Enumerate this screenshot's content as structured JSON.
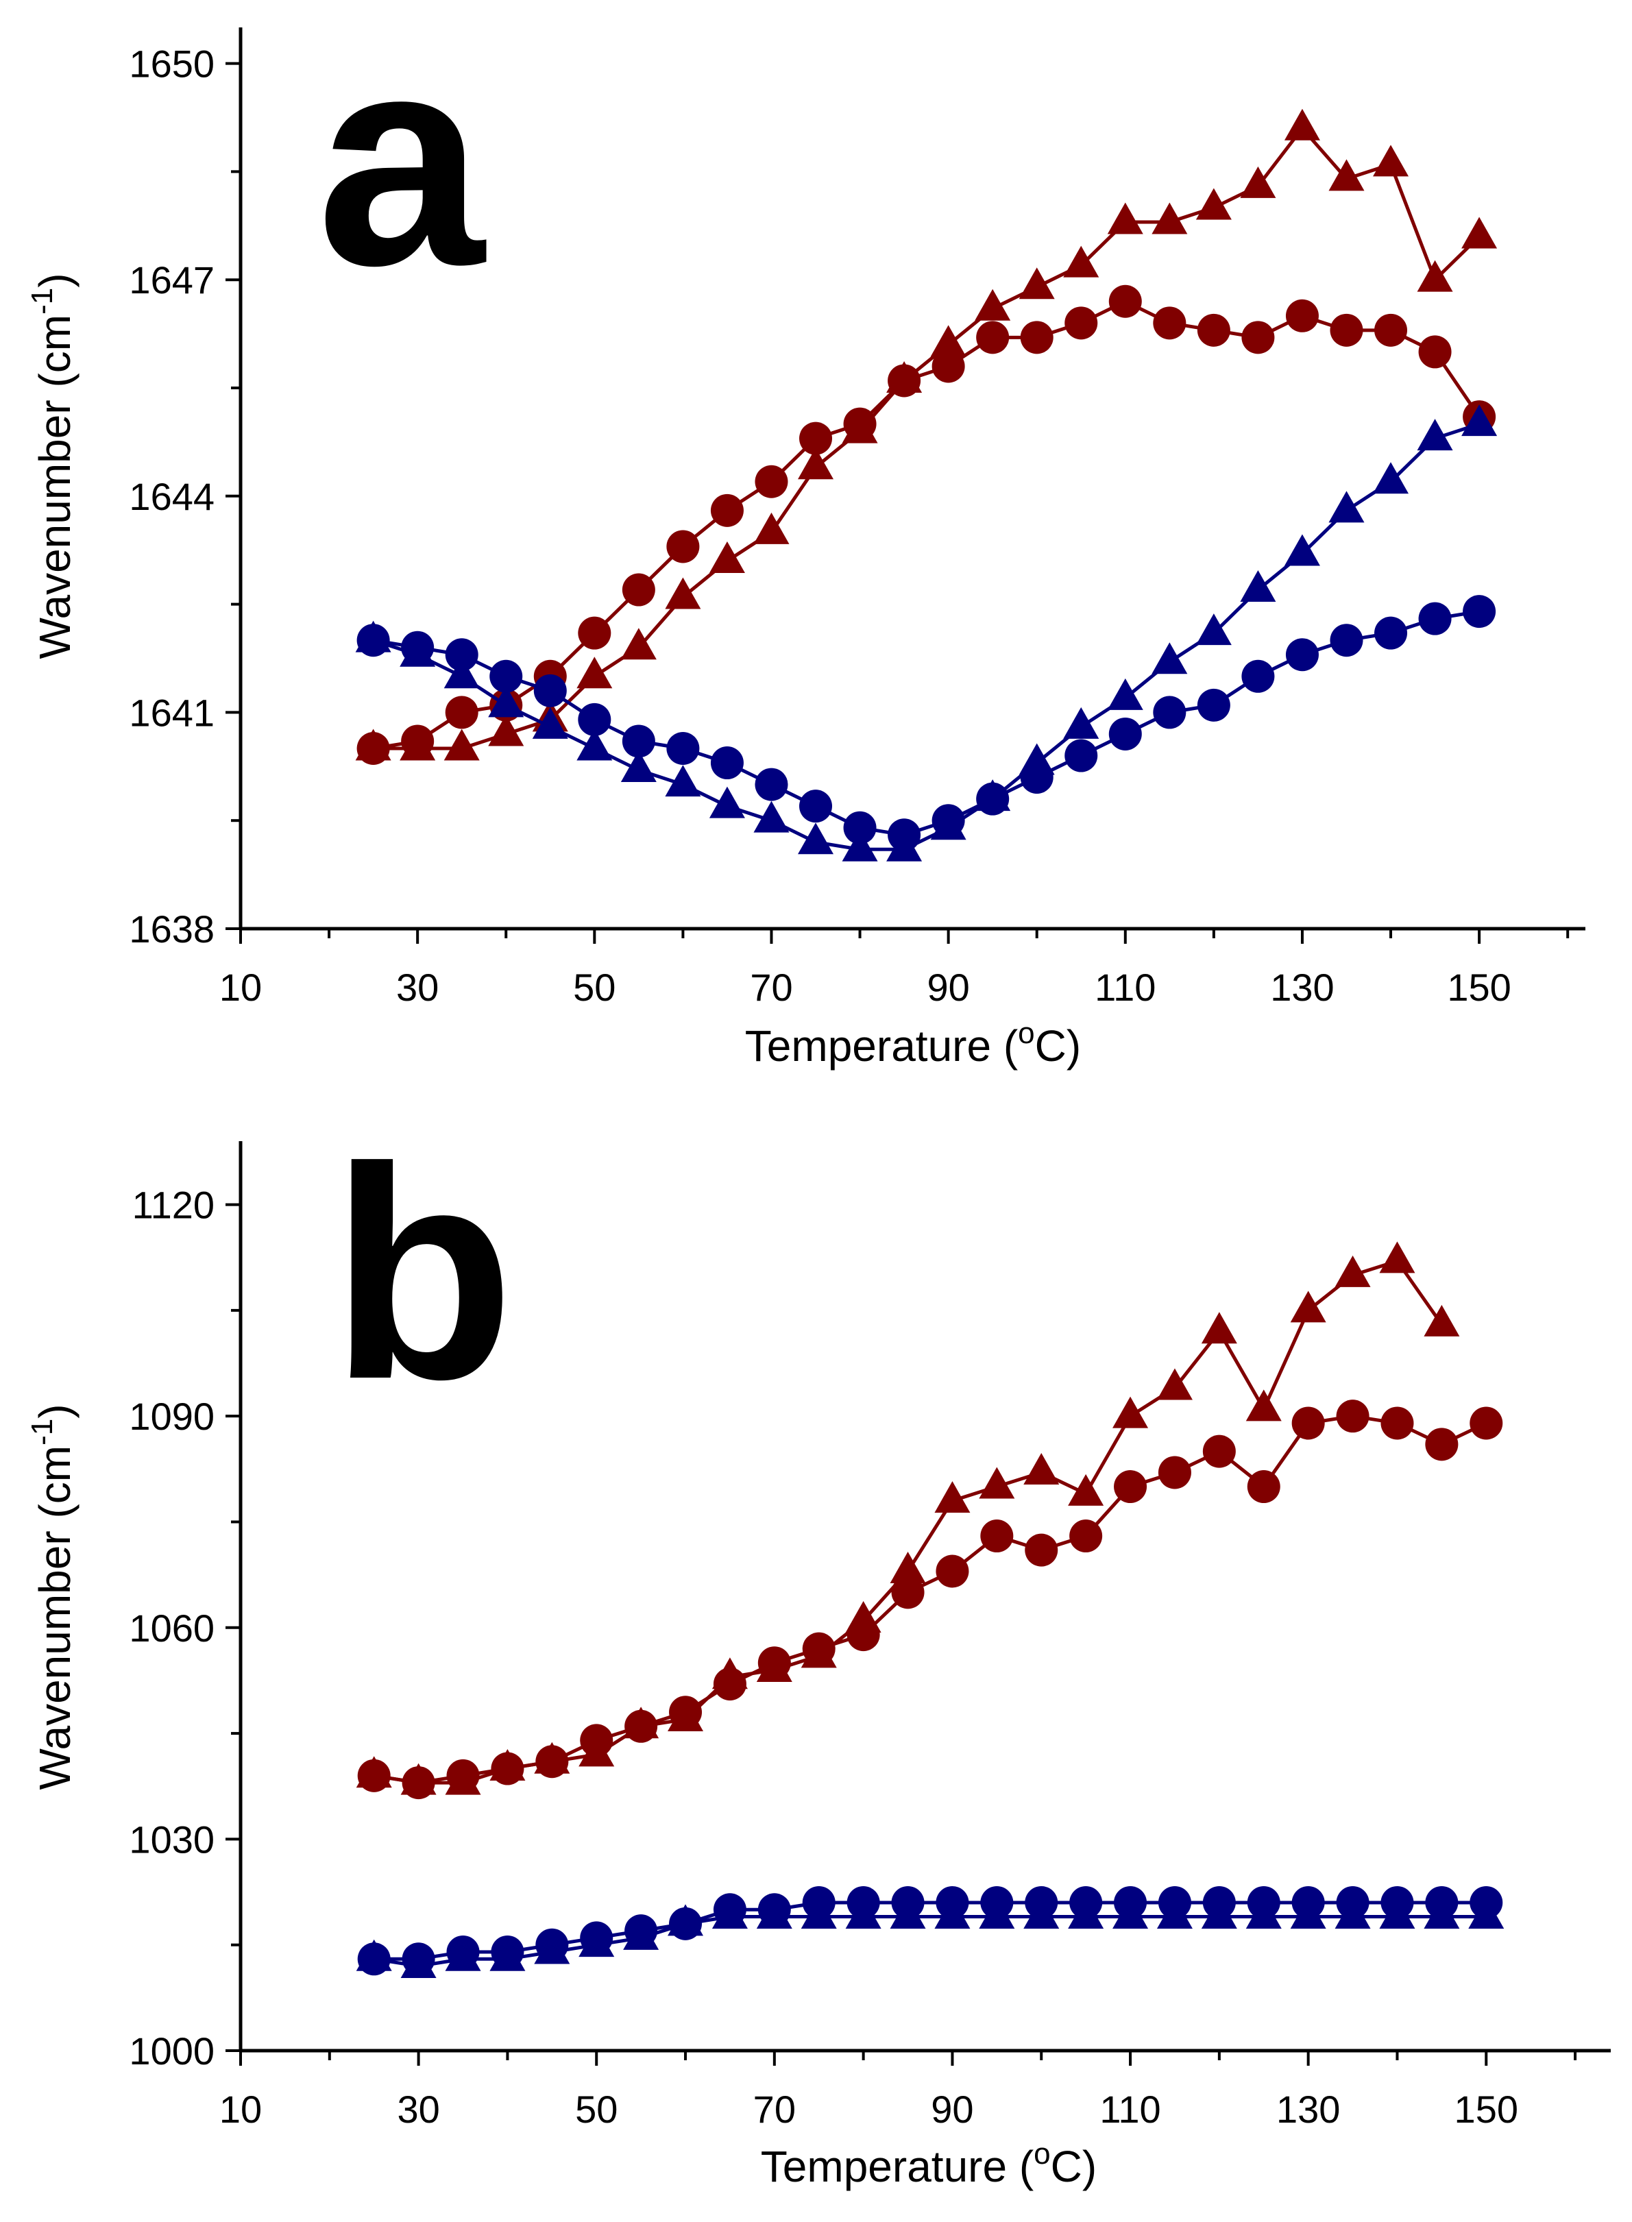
{
  "colors": {
    "red_series": "#800000",
    "blue_series": "#00007f"
  },
  "chart_data": [
    {
      "type": "line",
      "panel_label": "a",
      "xlabel": {
        "main": "Temperature (",
        "sup": "o",
        "tail": "C)"
      },
      "ylabel": {
        "main": "Wavenumber (cm",
        "sup": "-1",
        "tail": ")"
      },
      "xlim": [
        10,
        162
      ],
      "ylim": [
        1638,
        1650.5
      ],
      "xticks": [
        10,
        30,
        50,
        70,
        90,
        110,
        130,
        150
      ],
      "yticks": [
        1638,
        1641,
        1644,
        1647,
        1650
      ],
      "x": [
        25,
        30,
        35,
        40,
        45,
        50,
        55,
        60,
        65,
        70,
        75,
        80,
        85,
        90,
        95,
        100,
        105,
        110,
        115,
        120,
        125,
        130,
        135,
        140,
        145,
        150
      ],
      "series": [
        {
          "name": "red-triangles",
          "color": "#800000",
          "marker": "triangle",
          "values": [
            1640.5,
            1640.5,
            1640.5,
            1640.7,
            1640.9,
            1641.5,
            1641.9,
            1642.6,
            1643.1,
            1643.5,
            1644.4,
            1644.9,
            1645.6,
            1646.1,
            1646.6,
            1646.9,
            1647.2,
            1647.8,
            1647.8,
            1648.0,
            1648.3,
            1649.1,
            1648.4,
            1648.6,
            1647.0,
            1647.6
          ]
        },
        {
          "name": "red-circles",
          "color": "#800000",
          "marker": "circle",
          "values": [
            1640.5,
            1640.6,
            1641.0,
            1641.1,
            1641.5,
            1642.1,
            1642.7,
            1643.3,
            1643.8,
            1644.2,
            1644.8,
            1645.0,
            1645.6,
            1645.8,
            1646.2,
            1646.2,
            1646.4,
            1646.7,
            1646.4,
            1646.3,
            1646.2,
            1646.5,
            1646.3,
            1646.3,
            1646.0,
            1645.1
          ]
        },
        {
          "name": "blue-triangles",
          "color": "#00007f",
          "marker": "triangle",
          "values": [
            1642.0,
            1641.8,
            1641.5,
            1641.1,
            1640.8,
            1640.5,
            1640.2,
            1640.0,
            1639.7,
            1639.5,
            1639.2,
            1639.1,
            1639.1,
            1639.4,
            1639.8,
            1640.3,
            1640.8,
            1641.2,
            1641.7,
            1642.1,
            1642.7,
            1643.2,
            1643.8,
            1644.2,
            1644.8,
            1645.0
          ]
        },
        {
          "name": "blue-circles",
          "color": "#00007f",
          "marker": "circle",
          "values": [
            1642.0,
            1641.9,
            1641.8,
            1641.5,
            1641.3,
            1640.9,
            1640.6,
            1640.5,
            1640.3,
            1640.0,
            1639.7,
            1639.4,
            1639.3,
            1639.5,
            1639.8,
            1640.1,
            1640.4,
            1640.7,
            1641.0,
            1641.1,
            1641.5,
            1641.8,
            1642.0,
            1642.1,
            1642.3,
            1642.4
          ]
        }
      ]
    },
    {
      "type": "line",
      "panel_label": "b",
      "xlabel": {
        "main": "Temperature (",
        "sup": "o",
        "tail": "C)"
      },
      "ylabel": {
        "main": "Wavenumber (cm",
        "sup": "-1",
        "tail": ")"
      },
      "xlim": [
        10,
        162
      ],
      "ylim": [
        1000,
        1129
      ],
      "xticks": [
        10,
        30,
        50,
        70,
        90,
        110,
        130,
        150
      ],
      "yticks": [
        1000,
        1030,
        1060,
        1090,
        1120
      ],
      "x": [
        25,
        30,
        35,
        40,
        45,
        50,
        55,
        60,
        65,
        70,
        75,
        80,
        85,
        90,
        95,
        100,
        105,
        110,
        115,
        120,
        125,
        130,
        135,
        140,
        145,
        150
      ],
      "series": [
        {
          "name": "red-triangles",
          "color": "#800000",
          "marker": "triangle",
          "values": [
            1039,
            1038,
            1038,
            1040,
            1041,
            1042,
            1046,
            1047,
            1053,
            1054,
            1056,
            1061,
            1068,
            1078,
            1080,
            1082,
            1079,
            1090,
            1094,
            1102,
            1091,
            1105,
            1110,
            1112,
            1103,
            null
          ]
        },
        {
          "name": "red-circles",
          "color": "#800000",
          "marker": "circle",
          "values": [
            1039,
            1038,
            1039,
            1040,
            1041,
            1044,
            1046,
            1048,
            1052,
            1055,
            1057,
            1059,
            1065,
            1068,
            1073,
            1071,
            1073,
            1080,
            1082,
            1085,
            1080,
            1089,
            1090,
            1089,
            1086,
            1089
          ]
        },
        {
          "name": "blue-triangles",
          "color": "#00007f",
          "marker": "triangle",
          "values": [
            1013,
            1012,
            1013,
            1013,
            1014,
            1015,
            1016,
            1018,
            1019,
            1019,
            1019,
            1019,
            1019,
            1019,
            1019,
            1019,
            1019,
            1019,
            1019,
            1019,
            1019,
            1019,
            1019,
            1019,
            1019,
            1019
          ]
        },
        {
          "name": "blue-circles",
          "color": "#00007f",
          "marker": "circle",
          "values": [
            1013,
            1013,
            1014,
            1014,
            1015,
            1016,
            1017,
            1018,
            1020,
            1020,
            1021,
            1021,
            1021,
            1021,
            1021,
            1021,
            1021,
            1021,
            1021,
            1021,
            1021,
            1021,
            1021,
            1021,
            1021,
            1021
          ]
        }
      ]
    }
  ]
}
